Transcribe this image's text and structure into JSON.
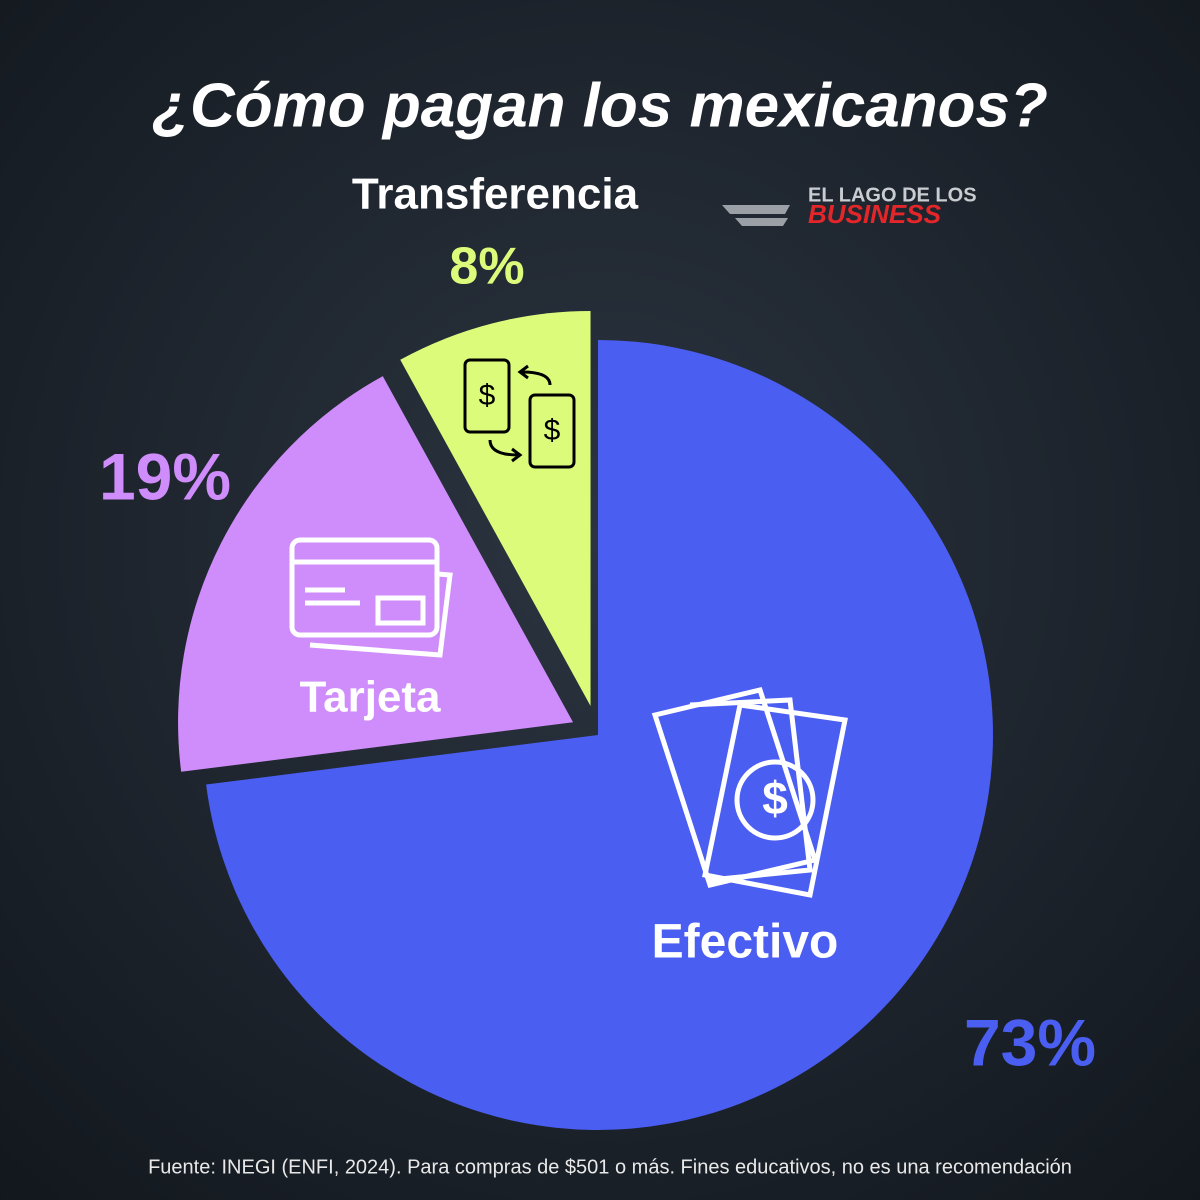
{
  "chart_data": {
    "type": "pie",
    "title": "¿Cómo pagan los mexicanos?",
    "logo": [
      "EL LAGO DE LOS",
      "BUSINESS"
    ],
    "categories": [
      "Efectivo",
      "Tarjeta",
      "Transferencia"
    ],
    "values": [
      73,
      19,
      8
    ],
    "value_labels": [
      "73%",
      "19%",
      "8%"
    ],
    "colors": [
      "#4b5ef2",
      "#cf8dfb",
      "#dcfb7b"
    ],
    "source": "Fuente: INEGI (ENFI, 2024). Para compras de $501 o más. Fines educativos, no es una recomendación"
  }
}
